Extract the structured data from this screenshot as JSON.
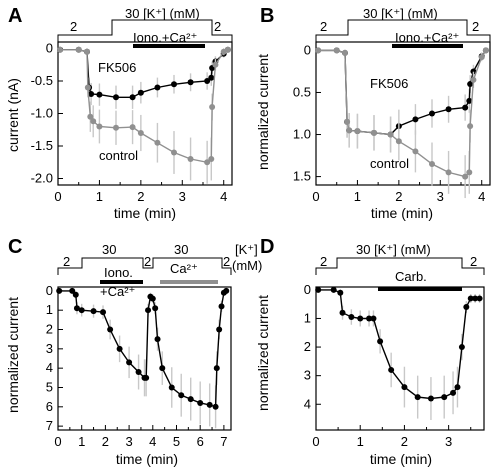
{
  "chart_data": [
    {
      "panel_label": "A",
      "type": "line",
      "xlabel": "time (min)",
      "ylabel": "current (nA)",
      "xlim": [
        0,
        4.2
      ],
      "ylim": [
        -2.1,
        0.1
      ],
      "xticks": [
        "0",
        "1",
        "2",
        "3",
        "4"
      ],
      "yticks": [
        "0",
        "-0.5",
        "-1.0",
        "-1.5",
        "-2.0"
      ],
      "annotations": [
        "2",
        "30 [K⁺] (mM)",
        "2",
        "Iono.+Ca²⁺"
      ],
      "series": [
        {
          "name": "FK506",
          "color": "#000000",
          "x": [
            0.05,
            0.5,
            0.7,
            0.75,
            0.8,
            1.0,
            1.4,
            1.8,
            2.0,
            2.4,
            2.8,
            3.2,
            3.6,
            3.7,
            3.72,
            3.8,
            4.0,
            4.1
          ],
          "y": [
            -0.02,
            -0.02,
            -0.05,
            -0.6,
            -0.7,
            -0.71,
            -0.75,
            -0.75,
            -0.68,
            -0.6,
            -0.55,
            -0.52,
            -0.5,
            -0.45,
            -0.3,
            -0.2,
            -0.08,
            -0.02
          ]
        },
        {
          "name": "control",
          "color": "#909090",
          "x": [
            0.05,
            0.5,
            0.7,
            0.72,
            0.78,
            0.85,
            1.0,
            1.4,
            1.8,
            2.0,
            2.4,
            2.8,
            3.2,
            3.6,
            3.7,
            3.72,
            3.8,
            4.0,
            4.1
          ],
          "y": [
            -0.02,
            -0.02,
            -0.05,
            -0.6,
            -1.05,
            -1.12,
            -1.2,
            -1.22,
            -1.21,
            -1.3,
            -1.45,
            -1.6,
            -1.7,
            -1.75,
            -1.7,
            -0.9,
            -0.25,
            -0.05,
            -0.02
          ]
        }
      ]
    },
    {
      "panel_label": "B",
      "type": "line",
      "xlabel": "time (min)",
      "ylabel": "normalized current",
      "xlim": [
        0,
        4.2
      ],
      "ylim": [
        -0.1,
        1.6
      ],
      "xticks": [
        "0",
        "1",
        "2",
        "3",
        "4"
      ],
      "yticks": [
        "0",
        "0.5",
        "1.0",
        "1.5"
      ],
      "annotations": [
        "2",
        "30 [K⁺] (mM)",
        "2",
        "Iono.+Ca²⁺"
      ],
      "series": [
        {
          "name": "FK506",
          "color": "#000000",
          "x": [
            0.05,
            0.5,
            0.7,
            0.75,
            0.8,
            1.0,
            1.4,
            1.8,
            2.0,
            2.4,
            2.8,
            3.2,
            3.6,
            3.7,
            3.72,
            3.8,
            4.0,
            4.1
          ],
          "y": [
            0.0,
            0.0,
            0.03,
            0.85,
            0.95,
            0.96,
            0.98,
            1.0,
            0.9,
            0.82,
            0.75,
            0.7,
            0.68,
            0.6,
            0.4,
            0.25,
            0.07,
            0.0
          ]
        },
        {
          "name": "control",
          "color": "#909090",
          "x": [
            0.05,
            0.5,
            0.7,
            0.75,
            0.8,
            1.0,
            1.4,
            1.8,
            2.0,
            2.4,
            2.8,
            3.2,
            3.6,
            3.7,
            3.72,
            3.8,
            4.0,
            4.1
          ],
          "y": [
            0.0,
            0.0,
            0.03,
            0.85,
            0.95,
            0.96,
            0.98,
            1.0,
            1.08,
            1.2,
            1.35,
            1.45,
            1.5,
            1.45,
            0.9,
            0.35,
            0.08,
            0.0
          ]
        }
      ]
    },
    {
      "panel_label": "C",
      "type": "line",
      "xlabel": "time (min)",
      "ylabel": "normalized current",
      "xlim": [
        0,
        7.3
      ],
      "ylim": [
        -0.2,
        7.2
      ],
      "xticks": [
        "0",
        "1",
        "2",
        "3",
        "4",
        "5",
        "6",
        "7"
      ],
      "yticks": [
        "0",
        "1",
        "2",
        "3",
        "4",
        "5",
        "6",
        "7"
      ],
      "annotations": [
        "2",
        "30",
        "2",
        "30",
        "2",
        "[K⁺]",
        "(mM)",
        "Iono.",
        "+Ca²⁺",
        "Ca²⁺"
      ],
      "series": [
        {
          "name": "",
          "color": "#000000",
          "x": [
            0.05,
            0.6,
            0.75,
            0.8,
            1.0,
            1.5,
            1.9,
            2.2,
            2.6,
            3.0,
            3.4,
            3.65,
            3.72,
            3.8,
            3.9,
            4.0,
            4.1,
            4.2,
            4.4,
            4.8,
            5.2,
            5.6,
            6.0,
            6.4,
            6.65,
            6.7,
            6.8,
            6.9,
            7.0,
            7.1
          ],
          "y": [
            0.0,
            0.0,
            0.2,
            0.9,
            1.0,
            1.05,
            1.1,
            2.0,
            3.0,
            3.7,
            4.2,
            4.5,
            4.5,
            1.0,
            0.3,
            0.4,
            0.9,
            2.5,
            4.0,
            5.0,
            5.4,
            5.6,
            5.8,
            5.9,
            6.0,
            4.0,
            2.0,
            0.8,
            0.1,
            0.0
          ]
        }
      ]
    },
    {
      "panel_label": "D",
      "type": "line",
      "xlabel": "time (min)",
      "ylabel": "normalized current",
      "xlim": [
        0,
        3.8
      ],
      "ylim": [
        -0.1,
        4.9
      ],
      "xticks": [
        "0",
        "1",
        "2",
        "3"
      ],
      "yticks": [
        "0",
        "1",
        "2",
        "3",
        "4"
      ],
      "annotations": [
        "2",
        "30 [K⁺] (mM)",
        "2",
        "Carb."
      ],
      "series": [
        {
          "name": "",
          "color": "#000000",
          "x": [
            0.05,
            0.4,
            0.55,
            0.6,
            0.8,
            1.0,
            1.2,
            1.3,
            1.45,
            1.7,
            2.0,
            2.3,
            2.6,
            2.9,
            3.1,
            3.2,
            3.3,
            3.4,
            3.5,
            3.6,
            3.7
          ],
          "y": [
            0.0,
            0.0,
            0.1,
            0.8,
            0.95,
            1.0,
            1.0,
            1.0,
            1.8,
            2.8,
            3.4,
            3.75,
            3.8,
            3.75,
            3.6,
            3.4,
            2.0,
            0.6,
            0.3,
            0.3,
            0.3
          ]
        }
      ]
    }
  ]
}
